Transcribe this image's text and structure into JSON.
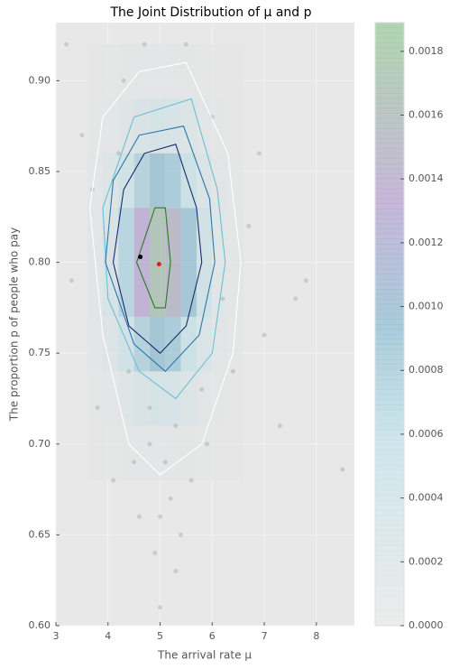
{
  "chart_data": {
    "type": "hist2d",
    "title": "The Joint Distribution of μ and p",
    "xlabel": "The arrival rate μ",
    "ylabel": "The proportion p of people who pay",
    "xlim": [
      3,
      8.73
    ],
    "ylim": [
      0.6,
      0.932
    ],
    "xticks": [
      3,
      4,
      5,
      6,
      7,
      8
    ],
    "yticks": [
      {
        "value": 0.6,
        "label": "0.60"
      },
      {
        "value": 0.65,
        "label": "0.65"
      },
      {
        "value": 0.7,
        "label": "0.70"
      },
      {
        "value": 0.75,
        "label": "0.75"
      },
      {
        "value": 0.8,
        "label": "0.80"
      },
      {
        "value": 0.85,
        "label": "0.85"
      },
      {
        "value": 0.9,
        "label": "0.90"
      }
    ],
    "grid": true,
    "bins_x": [
      3.6,
      3.9,
      4.2,
      4.5,
      4.8,
      5.1,
      5.4,
      5.7,
      6.0,
      6.3,
      6.6
    ],
    "bins_y": [
      0.68,
      0.71,
      0.74,
      0.77,
      0.8,
      0.83,
      0.86,
      0.89,
      0.92
    ],
    "density": [
      [
        3e-06,
        9e-06,
        2.5e-05,
        4.5e-05,
        5.7e-05,
        5.1e-05,
        3.1e-05,
        1.4e-05,
        4e-06,
        1e-06
      ],
      [
        1.4e-05,
        5.1e-05,
        0.000133,
        0.000241,
        0.000308,
        0.000272,
        0.000169,
        7.3e-05,
        2.2e-05,
        5e-06
      ],
      [
        4.2e-05,
        0.000157,
        0.000411,
        0.000746,
        0.000951,
        0.000841,
        0.000522,
        0.000226,
        6.8e-05,
        1.4e-05
      ],
      [
        7.4e-05,
        0.000275,
        0.000721,
        0.001309,
        0.001669,
        0.001476,
        0.000916,
        0.000396,
        0.000119,
        2.5e-05
      ],
      [
        7.4e-05,
        0.000275,
        0.000721,
        0.001309,
        0.001669,
        0.001476,
        0.000916,
        0.000396,
        0.000119,
        2.5e-05
      ],
      [
        4.2e-05,
        0.000157,
        0.000411,
        0.000746,
        0.000951,
        0.000841,
        0.000522,
        0.000226,
        6.8e-05,
        1.4e-05
      ],
      [
        1.4e-05,
        5.1e-05,
        0.000133,
        0.000241,
        0.000308,
        0.000272,
        0.000169,
        7.3e-05,
        2.2e-05,
        5e-06
      ],
      [
        3e-06,
        9e-06,
        2.5e-05,
        4.5e-05,
        5.7e-05,
        5.1e-05,
        3.1e-05,
        1.4e-05,
        4e-06,
        1e-06
      ]
    ],
    "contours": [
      {
        "color": "#ffffff",
        "x": [
          4.6,
          5.5,
          6.3,
          6.55,
          6.4,
          5.8,
          5.0,
          4.4,
          3.9,
          3.65,
          3.9
        ],
        "y": [
          0.905,
          0.91,
          0.86,
          0.8,
          0.75,
          0.7,
          0.683,
          0.7,
          0.76,
          0.83,
          0.88
        ]
      },
      {
        "color": "#6cc0d4",
        "x": [
          4.5,
          5.6,
          6.1,
          6.25,
          6.0,
          5.3,
          4.6,
          4.0,
          3.9
        ],
        "y": [
          0.88,
          0.89,
          0.84,
          0.8,
          0.75,
          0.725,
          0.74,
          0.78,
          0.83
        ]
      },
      {
        "color": "#2a78a8",
        "x": [
          4.6,
          5.45,
          5.95,
          6.05,
          5.75,
          5.1,
          4.5,
          3.95,
          4.1
        ],
        "y": [
          0.87,
          0.875,
          0.835,
          0.8,
          0.76,
          0.74,
          0.755,
          0.8,
          0.845
        ]
      },
      {
        "color": "#1a2a6c",
        "x": [
          4.7,
          5.3,
          5.7,
          5.8,
          5.5,
          5.0,
          4.4,
          4.1,
          4.3
        ],
        "y": [
          0.86,
          0.865,
          0.83,
          0.8,
          0.765,
          0.75,
          0.765,
          0.8,
          0.84
        ]
      },
      {
        "color": "#2a7a2a",
        "x": [
          4.9,
          5.1,
          5.2,
          5.1,
          4.9,
          4.55
        ],
        "y": [
          0.83,
          0.83,
          0.8,
          0.775,
          0.775,
          0.8
        ]
      }
    ],
    "points": {
      "color": "#9aa3a3",
      "x": [
        3.3,
        3.5,
        3.8,
        4.1,
        4.3,
        4.4,
        4.6,
        4.8,
        4.9,
        5.0,
        5.1,
        5.2,
        5.3,
        5.5,
        5.6,
        5.8,
        6.0,
        6.2,
        6.4,
        6.7,
        7.0,
        7.3,
        7.8,
        8.5,
        4.7,
        5.4,
        4.2,
        5.9,
        3.7,
        6.9,
        4.5,
        5.3,
        5.0,
        4.8,
        3.2,
        7.6
      ],
      "y": [
        0.79,
        0.87,
        0.72,
        0.68,
        0.9,
        0.74,
        0.66,
        0.7,
        0.64,
        0.61,
        0.69,
        0.67,
        0.71,
        0.92,
        0.68,
        0.73,
        0.88,
        0.78,
        0.74,
        0.82,
        0.76,
        0.71,
        0.79,
        0.686,
        0.92,
        0.65,
        0.86,
        0.7,
        0.84,
        0.86,
        0.69,
        0.63,
        0.66,
        0.72,
        0.92,
        0.78
      ]
    },
    "markers": [
      {
        "color": "#000000",
        "x": 4.62,
        "y": 0.803
      },
      {
        "color": "#e02020",
        "x": 4.98,
        "y": 0.799
      }
    ],
    "colorbar": {
      "lim": [
        0,
        0.00189
      ],
      "ticks": [
        {
          "value": 0,
          "label": "0.0000"
        },
        {
          "value": 0.0002,
          "label": "0.0002"
        },
        {
          "value": 0.0004,
          "label": "0.0004"
        },
        {
          "value": 0.0006,
          "label": "0.0006"
        },
        {
          "value": 0.0008,
          "label": "0.0008"
        },
        {
          "value": 0.001,
          "label": "0.0010"
        },
        {
          "value": 0.0012,
          "label": "0.0012"
        },
        {
          "value": 0.0014,
          "label": "0.0014"
        },
        {
          "value": 0.0016,
          "label": "0.0016"
        },
        {
          "value": 0.0018,
          "label": "0.0018"
        }
      ]
    }
  }
}
